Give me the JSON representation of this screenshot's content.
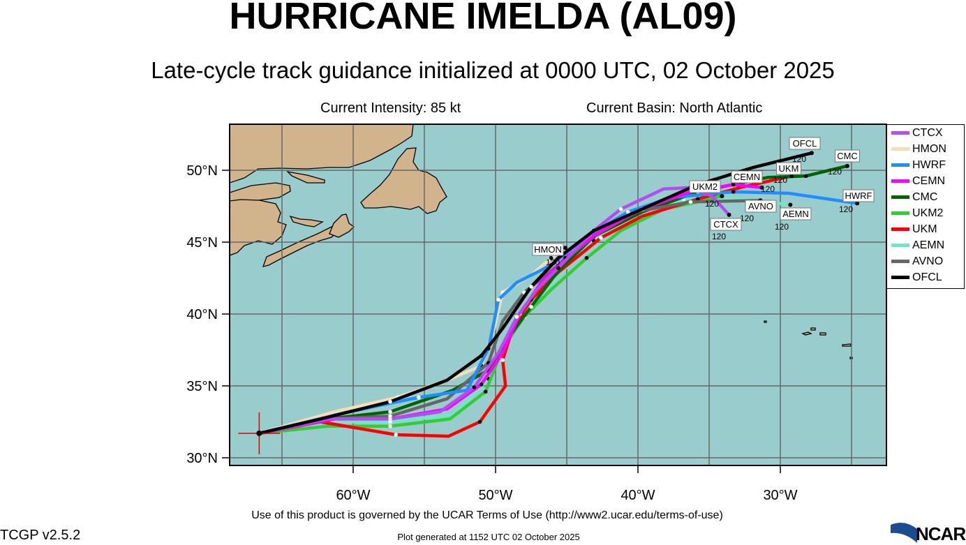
{
  "header": {
    "title": "HURRICANE IMELDA (AL09)",
    "subtitle": "Late-cycle track guidance initialized at 0000 UTC, 02 October 2025",
    "intensity": "Current Intensity: 85 kt",
    "basin": "Current Basin: North Atlantic"
  },
  "footer": {
    "terms": "Use of this product is governed by the UCAR Terms of Use (http://www2.ucar.edu/terms-of-use)",
    "version": "TCGP v2.5.2",
    "generated": "Plot generated at 1152 UTC   02 October 2025",
    "logo": "NCAR"
  },
  "chart_data": {
    "type": "map-tracks",
    "lon_range": [
      -68.7,
      -22.6
    ],
    "lat_range": [
      29.45,
      53.2
    ],
    "lat_ticks": [
      "30°N",
      "35°N",
      "40°N",
      "45°N",
      "50°N"
    ],
    "lat_tick_values": [
      30,
      35,
      40,
      45,
      50
    ],
    "lon_ticks": [
      "60°W",
      "50°W",
      "40°W",
      "30°W"
    ],
    "lon_tick_values": [
      -60,
      -50,
      -40,
      -30
    ],
    "end_hour_label": "120",
    "colors": {
      "ocean": "#99cccc",
      "land": "#d2b48c",
      "grid": "#666666"
    },
    "storm_position": {
      "lon": -66.6,
      "lat": 31.7
    },
    "legend": [
      {
        "name": "CTCX",
        "color": "#b44cf0"
      },
      {
        "name": "HMON",
        "color": "#f5deb3"
      },
      {
        "name": "HWRF",
        "color": "#1e8fff"
      },
      {
        "name": "CEMN",
        "color": "#ff00ff"
      },
      {
        "name": "CMC",
        "color": "#006400"
      },
      {
        "name": "UKM2",
        "color": "#32cd32"
      },
      {
        "name": "UKM",
        "color": "#ff0000"
      },
      {
        "name": "AEMN",
        "color": "#70e8c8"
      },
      {
        "name": "AVNO",
        "color": "#666666"
      },
      {
        "name": "OFCL",
        "color": "#000000"
      }
    ],
    "series": [
      {
        "name": "HMON",
        "color": "#f5deb3",
        "label_end": false,
        "points": [
          [
            -66.6,
            31.7
          ],
          [
            -61.3,
            33.2
          ],
          [
            -56.9,
            34.2
          ],
          [
            -53.4,
            35.4
          ],
          [
            -51.0,
            36.4
          ],
          [
            -50.1,
            39.0
          ],
          [
            -49.5,
            41.5
          ],
          [
            -47.5,
            42.7
          ],
          [
            -46.1,
            43.9
          ],
          [
            -45.1,
            44.6
          ]
        ]
      },
      {
        "name": "AEMN",
        "color": "#70e8c8",
        "label_end": true,
        "points": [
          [
            -66.6,
            31.7
          ],
          [
            -61.8,
            32.5
          ],
          [
            -57.4,
            32.5
          ],
          [
            -53.0,
            33.0
          ],
          [
            -50.5,
            35.5
          ],
          [
            -49.3,
            38.0
          ],
          [
            -47.5,
            40.5
          ],
          [
            -45.6,
            42.7
          ],
          [
            -43.1,
            45.1
          ],
          [
            -40.2,
            47.1
          ],
          [
            -36.8,
            48.0
          ],
          [
            -32.9,
            48.0
          ],
          [
            -29.3,
            47.6
          ]
        ]
      },
      {
        "name": "UKM2",
        "color": "#32cd32",
        "label_end": true,
        "points": [
          [
            -66.6,
            31.7
          ],
          [
            -61.8,
            32.2
          ],
          [
            -57.4,
            32.2
          ],
          [
            -53.2,
            32.7
          ],
          [
            -50.7,
            34.6
          ],
          [
            -49.5,
            37.6
          ],
          [
            -48.0,
            39.8
          ],
          [
            -46.1,
            41.7
          ],
          [
            -43.6,
            43.9
          ],
          [
            -41.2,
            45.8
          ],
          [
            -38.2,
            47.3
          ],
          [
            -35.8,
            47.8
          ],
          [
            -34.1,
            48.2
          ]
        ]
      },
      {
        "name": "UKM",
        "color": "#ff0000",
        "label_end": true,
        "points": [
          [
            -66.6,
            31.7
          ],
          [
            -62.3,
            32.5
          ],
          [
            -57.0,
            31.6
          ],
          [
            -53.3,
            31.5
          ],
          [
            -51.1,
            32.5
          ],
          [
            -49.3,
            35.0
          ],
          [
            -49.5,
            36.8
          ],
          [
            -48.8,
            39.0
          ],
          [
            -47.5,
            41.0
          ],
          [
            -45.6,
            42.9
          ],
          [
            -42.6,
            45.3
          ],
          [
            -39.7,
            46.8
          ],
          [
            -35.8,
            48.0
          ],
          [
            -32.8,
            48.8
          ],
          [
            -29.2,
            49.6
          ]
        ]
      },
      {
        "name": "CMC",
        "color": "#006400",
        "label_end": true,
        "points": [
          [
            -66.6,
            31.7
          ],
          [
            -61.8,
            32.7
          ],
          [
            -57.4,
            33.2
          ],
          [
            -53.0,
            34.7
          ],
          [
            -50.5,
            36.1
          ],
          [
            -49.3,
            38.1
          ],
          [
            -47.5,
            40.5
          ],
          [
            -45.6,
            43.0
          ],
          [
            -43.1,
            45.4
          ],
          [
            -39.7,
            47.1
          ],
          [
            -35.8,
            48.5
          ],
          [
            -30.9,
            49.5
          ],
          [
            -28.2,
            49.6
          ],
          [
            -25.3,
            50.3
          ]
        ]
      },
      {
        "name": "AVNO",
        "color": "#666666",
        "label_end": true,
        "points": [
          [
            -66.6,
            31.7
          ],
          [
            -61.8,
            32.7
          ],
          [
            -57.4,
            32.9
          ],
          [
            -53.4,
            34.1
          ],
          [
            -50.5,
            36.6
          ],
          [
            -49.5,
            39.5
          ],
          [
            -48.0,
            41.5
          ],
          [
            -45.6,
            43.4
          ],
          [
            -43.1,
            45.4
          ],
          [
            -40.2,
            47.1
          ],
          [
            -36.3,
            47.8
          ],
          [
            -31.4,
            47.9
          ]
        ]
      },
      {
        "name": "HWRF",
        "color": "#1e8fff",
        "label_end": true,
        "points": [
          [
            -66.6,
            31.7
          ],
          [
            -60.3,
            33.2
          ],
          [
            -55.4,
            34.2
          ],
          [
            -52.0,
            34.7
          ],
          [
            -50.5,
            37.6
          ],
          [
            -50.2,
            39.0
          ],
          [
            -49.8,
            41.0
          ],
          [
            -48.5,
            42.2
          ],
          [
            -46.1,
            43.4
          ],
          [
            -43.6,
            45.4
          ],
          [
            -40.7,
            47.1
          ],
          [
            -37.7,
            48.1
          ],
          [
            -33.3,
            48.5
          ],
          [
            -29.4,
            48.4
          ],
          [
            -24.6,
            47.7
          ]
        ]
      },
      {
        "name": "CEMN",
        "color": "#ff00ff",
        "label_end": true,
        "points": [
          [
            -66.6,
            31.7
          ],
          [
            -61.3,
            32.7
          ],
          [
            -57.4,
            32.7
          ],
          [
            -53.4,
            33.4
          ],
          [
            -51.0,
            35.1
          ],
          [
            -49.5,
            37.3
          ],
          [
            -48.3,
            40.0
          ],
          [
            -46.8,
            42.2
          ],
          [
            -45.1,
            43.9
          ],
          [
            -42.6,
            45.8
          ],
          [
            -39.7,
            47.3
          ],
          [
            -36.3,
            48.5
          ],
          [
            -33.3,
            49.0
          ],
          [
            -31.3,
            48.8
          ]
        ]
      },
      {
        "name": "CTCX",
        "color": "#b44cf0",
        "label_end": true,
        "points": [
          [
            -66.6,
            31.7
          ],
          [
            -61.8,
            32.7
          ],
          [
            -57.4,
            32.7
          ],
          [
            -53.9,
            33.2
          ],
          [
            -51.5,
            34.9
          ],
          [
            -49.8,
            37.3
          ],
          [
            -48.5,
            39.8
          ],
          [
            -47.1,
            41.7
          ],
          [
            -45.6,
            43.2
          ],
          [
            -43.1,
            45.8
          ],
          [
            -41.2,
            47.3
          ],
          [
            -38.2,
            48.7
          ],
          [
            -36.3,
            48.8
          ],
          [
            -34.8,
            48.2
          ],
          [
            -33.6,
            46.9
          ]
        ]
      },
      {
        "name": "OFCL",
        "color": "#000000",
        "label_end": true,
        "points": [
          [
            -66.6,
            31.7
          ],
          [
            -62.3,
            32.7
          ],
          [
            -57.4,
            33.9
          ],
          [
            -53.4,
            35.4
          ],
          [
            -51.0,
            37.1
          ],
          [
            -49.5,
            39.0
          ],
          [
            -47.5,
            41.9
          ],
          [
            -45.6,
            43.9
          ],
          [
            -43.1,
            45.8
          ],
          [
            -39.7,
            47.3
          ],
          [
            -35.8,
            49.0
          ],
          [
            -31.9,
            50.2
          ],
          [
            -27.8,
            51.2
          ]
        ]
      }
    ]
  }
}
